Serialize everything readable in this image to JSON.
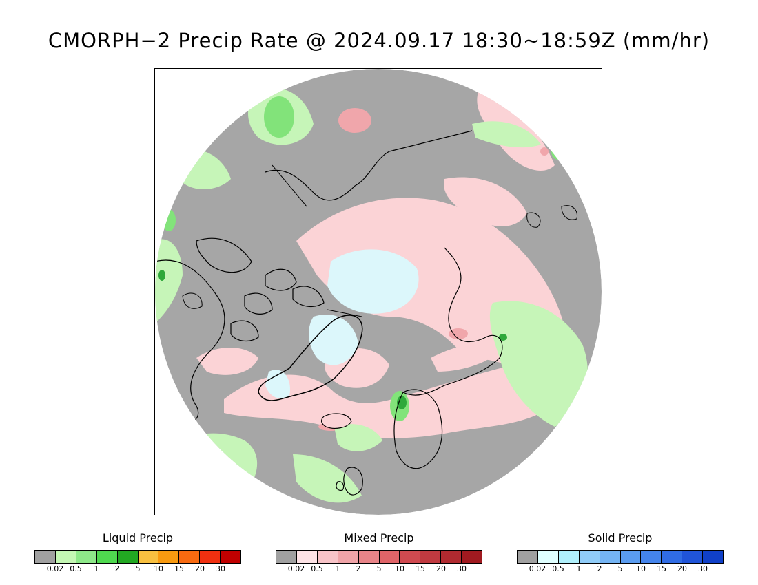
{
  "title": "CMORPH−2 Precip Rate @ 2024.09.17 18:30~18:59Z (mm/hr)",
  "map": {
    "projection": "north-polar-stereographic",
    "colors": {
      "no_precip": "#a6a6a6",
      "land_outline": "#000000",
      "liquid_light": "#c6f5b8",
      "liquid_mid": "#82e37a",
      "liquid_heavy": "#2ea83a",
      "mixed_light": "#fbd3d6",
      "mixed_mid": "#f0a6ab",
      "solid_light": "#dcf7fb"
    }
  },
  "legends": [
    {
      "title": "Liquid Precip",
      "ticks": [
        "0.02",
        "0.5",
        "1",
        "2",
        "5",
        "10",
        "15",
        "20",
        "30"
      ],
      "colors": [
        "#a0a0a0",
        "#c4f7b4",
        "#8ee889",
        "#4fd94f",
        "#22a822",
        "#f8c040",
        "#f89a10",
        "#f86a10",
        "#f03010",
        "#c00000"
      ]
    },
    {
      "title": "Mixed Precip",
      "ticks": [
        "0.02",
        "0.5",
        "1",
        "2",
        "5",
        "10",
        "15",
        "20",
        "30"
      ],
      "colors": [
        "#a0a0a0",
        "#fde3e6",
        "#f8c4c8",
        "#f0a4a8",
        "#e88488",
        "#e06468",
        "#d04a50",
        "#c03a40",
        "#b02a30",
        "#a01a20"
      ]
    },
    {
      "title": "Solid Precip",
      "ticks": [
        "0.02",
        "0.5",
        "1",
        "2",
        "5",
        "10",
        "15",
        "20",
        "30"
      ],
      "colors": [
        "#a0a0a0",
        "#e0ffff",
        "#b0f0fc",
        "#90ccf8",
        "#74b4f4",
        "#5a9cf0",
        "#4484ec",
        "#306ce4",
        "#2054d8",
        "#1040c8"
      ]
    }
  ]
}
